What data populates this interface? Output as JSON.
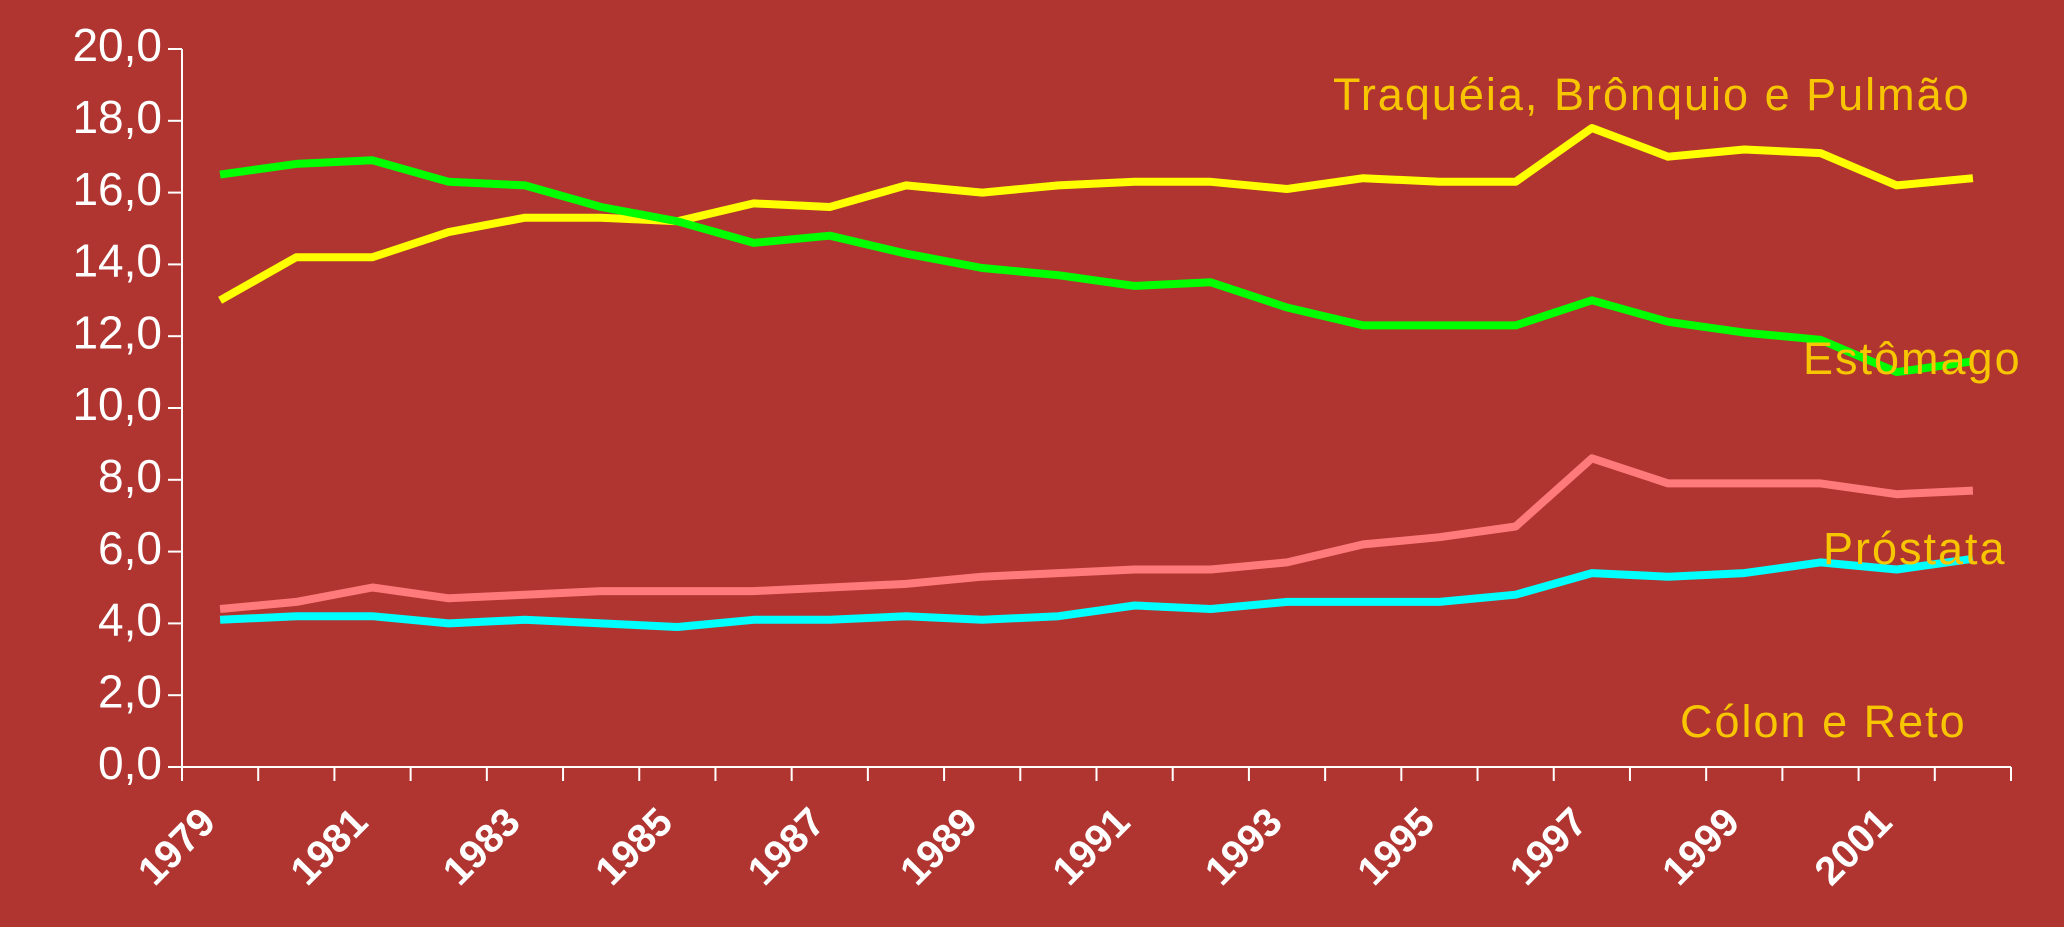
{
  "chart_data": {
    "type": "line",
    "categories": [
      "1979",
      null,
      "1981",
      null,
      "1983",
      null,
      "1985",
      null,
      "1987",
      null,
      "1989",
      null,
      "1991",
      null,
      "1993",
      null,
      "1995",
      null,
      "1997",
      null,
      "1999",
      null,
      "2001",
      null
    ],
    "series": [
      {
        "name": "Traquéia, Brônquio e Pulmão",
        "color": "#ffff00",
        "values": [
          13.0,
          14.2,
          14.2,
          14.9,
          15.3,
          15.3,
          15.2,
          15.7,
          15.6,
          16.2,
          16.0,
          16.2,
          16.3,
          16.3,
          16.1,
          16.4,
          16.3,
          16.3,
          17.8,
          17.0,
          17.2,
          17.1,
          16.2,
          16.4
        ]
      },
      {
        "name": "Estômago",
        "color": "#00ff00",
        "values": [
          16.5,
          16.8,
          16.9,
          16.3,
          16.2,
          15.6,
          15.2,
          14.6,
          14.8,
          14.3,
          13.9,
          13.7,
          13.4,
          13.5,
          12.8,
          12.3,
          12.3,
          12.3,
          13.0,
          12.4,
          12.1,
          11.9,
          11.0,
          11.3
        ]
      },
      {
        "name": "Próstata",
        "color": "#ff7b7b",
        "values": [
          4.4,
          4.6,
          5.0,
          4.7,
          4.8,
          4.9,
          4.9,
          4.9,
          5.0,
          5.1,
          5.3,
          5.4,
          5.5,
          5.5,
          5.7,
          6.2,
          6.4,
          6.7,
          8.6,
          7.9,
          7.9,
          7.9,
          7.6,
          7.7
        ]
      },
      {
        "name": "Cólon e Reto",
        "color": "#00ffff",
        "values": [
          4.1,
          4.2,
          4.2,
          4.0,
          4.1,
          4.0,
          3.9,
          4.1,
          4.1,
          4.2,
          4.1,
          4.2,
          4.5,
          4.4,
          4.6,
          4.6,
          4.6,
          4.8,
          5.4,
          5.3,
          5.4,
          5.7,
          5.5,
          5.8
        ]
      }
    ],
    "ylim": [
      0,
      20
    ],
    "yticks": [
      {
        "value": 0,
        "label": "0,0"
      },
      {
        "value": 2,
        "label": "2,0"
      },
      {
        "value": 4,
        "label": "4,0"
      },
      {
        "value": 6,
        "label": "6,0"
      },
      {
        "value": 8,
        "label": "8,0"
      },
      {
        "value": 10,
        "label": "10,0"
      },
      {
        "value": 12,
        "label": "12,0"
      },
      {
        "value": 14,
        "label": "14,0"
      },
      {
        "value": 16,
        "label": "16,0"
      },
      {
        "value": 18,
        "label": "18,0"
      },
      {
        "value": 20,
        "label": "20,0"
      }
    ],
    "grid": false
  }
}
